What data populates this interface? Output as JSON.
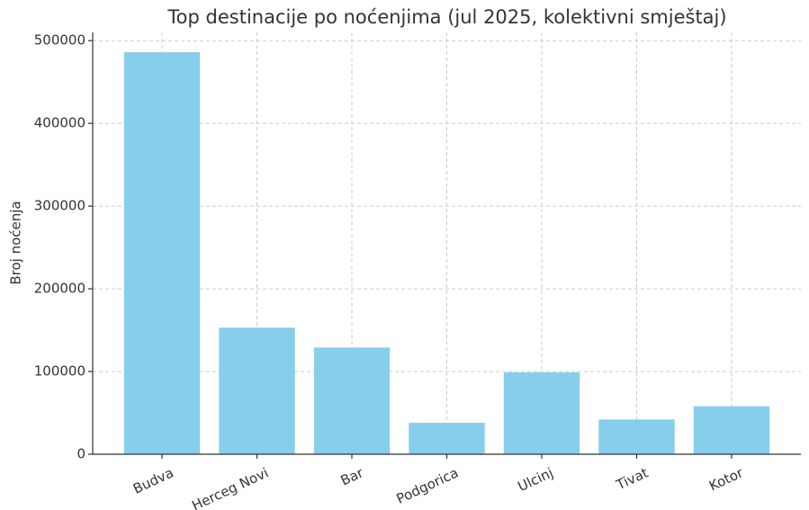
{
  "chart_data": {
    "type": "bar",
    "title": "Top destinacije po noćenjima (jul 2025, kolektivni smještaj)",
    "y_label": "Broj noćenja",
    "categories": [
      "Budva",
      "Herceg Novi",
      "Bar",
      "Podgorica",
      "Ulcinj",
      "Tivat",
      "Kotor"
    ],
    "values": [
      486000,
      153000,
      129000,
      38000,
      99000,
      42000,
      58000
    ],
    "color": "#87ceeb",
    "ylim": [
      0,
      510000
    ],
    "yticks": [
      0,
      100000,
      200000,
      300000,
      400000,
      500000
    ],
    "grid": true
  }
}
